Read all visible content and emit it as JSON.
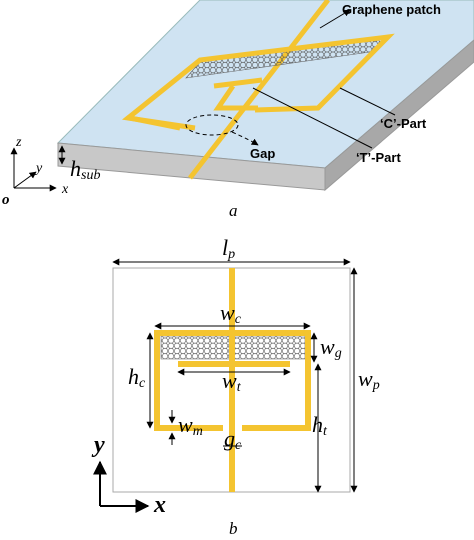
{
  "part_a": {
    "labels": {
      "graphene_patch": "Graphene patch",
      "c_part": "‘C’-Part",
      "t_part": "‘T’-Part",
      "gap": "Gap"
    },
    "axes": {
      "z": "z",
      "y": "y",
      "x": "x",
      "origin": "o"
    },
    "h_sub": {
      "base": "h",
      "sub": "sub"
    },
    "caption": "a"
  },
  "part_b": {
    "dimensions": {
      "l_p": {
        "base": "l",
        "sub": "p"
      },
      "w_c": {
        "base": "w",
        "sub": "c"
      },
      "w_g": {
        "base": "w",
        "sub": "g"
      },
      "h_c": {
        "base": "h",
        "sub": "c"
      },
      "w_t": {
        "base": "w",
        "sub": "t"
      },
      "w_p": {
        "base": "w",
        "sub": "p"
      },
      "h_t": {
        "base": "h",
        "sub": "t"
      },
      "w_m": {
        "base": "w",
        "sub": "m"
      },
      "g_c": {
        "base": "g",
        "sub": "c"
      }
    },
    "axes": {
      "y": "y",
      "x": "x"
    },
    "caption": "b"
  }
}
